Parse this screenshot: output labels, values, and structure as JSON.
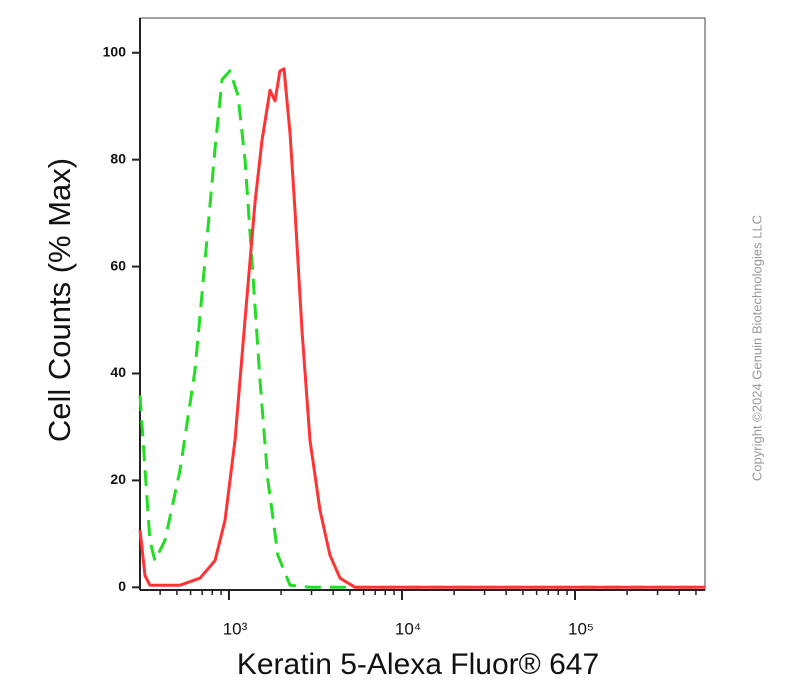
{
  "chart_data": {
    "type": "line",
    "xlabel": "Keratin 5-Alexa Fluor® 647",
    "ylabel": "Cell Counts (% Max)",
    "annotation": "Copyright ©2024 Genuin Biotechnologies LLC",
    "xscale": "log",
    "xlim": [
      306,
      564000
    ],
    "ylim": [
      -0.5,
      106.5
    ],
    "xticks": [
      {
        "value": 1000,
        "label": "10³"
      },
      {
        "value": 10000,
        "label": "10⁴"
      },
      {
        "value": 100000,
        "label": "10⁵"
      }
    ],
    "yticks": [
      0,
      20,
      40,
      60,
      80,
      100
    ],
    "series": [
      {
        "color": "#22dd22",
        "style": "dashed",
        "x": [
          306,
          349,
          373,
          427,
          521,
          636,
          727,
          830,
          912,
          1013,
          1127,
          1237,
          1359,
          1511,
          1679,
          1918,
          2253,
          2938,
          564000
        ],
        "values": [
          35.9,
          8.8,
          5,
          8.8,
          21.9,
          40.6,
          61,
          82,
          95,
          96.6,
          92,
          80,
          61,
          38.7,
          20,
          6,
          0.4,
          0,
          0
        ]
      },
      {
        "color": "#ff3333",
        "style": "solid",
        "x": [
          306,
          327,
          349,
          521,
          680,
          830,
          948,
          1083,
          1237,
          1413,
          1552,
          1727,
          1846,
          1972,
          2080,
          2253,
          2408,
          2642,
          2938,
          3357,
          3837,
          4385,
          5349,
          564000
        ],
        "values": [
          10.7,
          2.2,
          0.4,
          0.4,
          1.7,
          5,
          12.5,
          27.5,
          50,
          72,
          83.6,
          93,
          91,
          96.6,
          97,
          85,
          70.5,
          48,
          27.5,
          14.4,
          6,
          1.7,
          0,
          0
        ]
      }
    ]
  }
}
